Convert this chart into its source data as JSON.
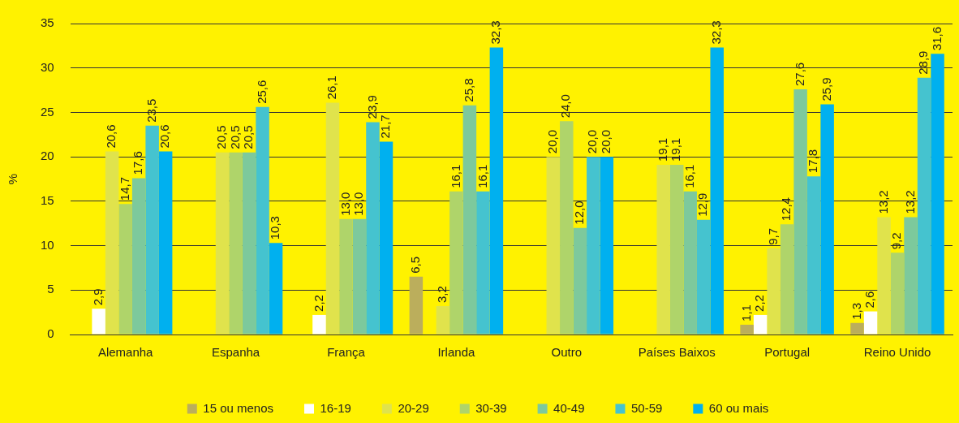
{
  "chart_data": {
    "type": "bar",
    "ylabel": "%",
    "categories": [
      "Alemanha",
      "Espanha",
      "França",
      "Irlanda",
      "Outro",
      "Países Baixos",
      "Portugal",
      "Reino Unido"
    ],
    "series": [
      {
        "name": "15 ou menos",
        "color": "#bbae5c",
        "values": [
          null,
          null,
          null,
          6.5,
          null,
          null,
          1.1,
          1.3
        ],
        "value_labels": [
          null,
          null,
          null,
          "6,5",
          null,
          null,
          "1,1",
          "1,3"
        ]
      },
      {
        "name": "16-19",
        "color": "#ffffff",
        "values": [
          2.9,
          null,
          2.2,
          null,
          null,
          null,
          2.2,
          2.6
        ],
        "value_labels": [
          "2,9",
          null,
          "2,2",
          null,
          null,
          null,
          "2,2",
          "2,6"
        ]
      },
      {
        "name": "20-29",
        "color": "#e0e34c",
        "values": [
          20.6,
          20.5,
          26.1,
          3.2,
          20.0,
          19.1,
          9.7,
          13.2
        ],
        "value_labels": [
          "20,6",
          "20,5",
          "26,1",
          "3,2",
          "20,0",
          "19,1",
          "9,7",
          "13,2"
        ]
      },
      {
        "name": "30-39",
        "color": "#afd46a",
        "values": [
          14.7,
          20.5,
          13.0,
          16.1,
          24.0,
          19.1,
          12.4,
          9.2
        ],
        "value_labels": [
          "14,7",
          "20,5",
          "13,0",
          "16,1",
          "24,0",
          "19,1",
          "12,4",
          "9,2"
        ]
      },
      {
        "name": "40-49",
        "color": "#7dc99c",
        "values": [
          17.6,
          20.5,
          13.0,
          25.8,
          12.0,
          16.1,
          27.6,
          13.2
        ],
        "value_labels": [
          "17,6",
          "20,5",
          "13,0",
          "25,8",
          "12,0",
          "16,1",
          "27,6",
          "13,2"
        ]
      },
      {
        "name": "50-59",
        "color": "#45c3cf",
        "values": [
          23.5,
          25.6,
          23.9,
          16.1,
          20.0,
          12.9,
          17.8,
          28.9
        ],
        "value_labels": [
          "23,5",
          "25,6",
          "23,9",
          "16,1",
          "20,0",
          "12,9",
          "17,8",
          "28,9"
        ]
      },
      {
        "name": "60 ou mais",
        "color": "#00b0ef",
        "values": [
          20.6,
          10.3,
          21.7,
          32.3,
          20.0,
          32.3,
          25.9,
          31.6
        ],
        "value_labels": [
          "20,6",
          "10,3",
          "21,7",
          "32,3",
          "20,0",
          "32,3",
          "25,9",
          "31,6"
        ]
      }
    ],
    "ylim": [
      0,
      35
    ],
    "yticks": [
      0,
      5,
      10,
      15,
      20,
      25,
      30,
      35
    ],
    "grid": "y",
    "legend": "bottom"
  }
}
